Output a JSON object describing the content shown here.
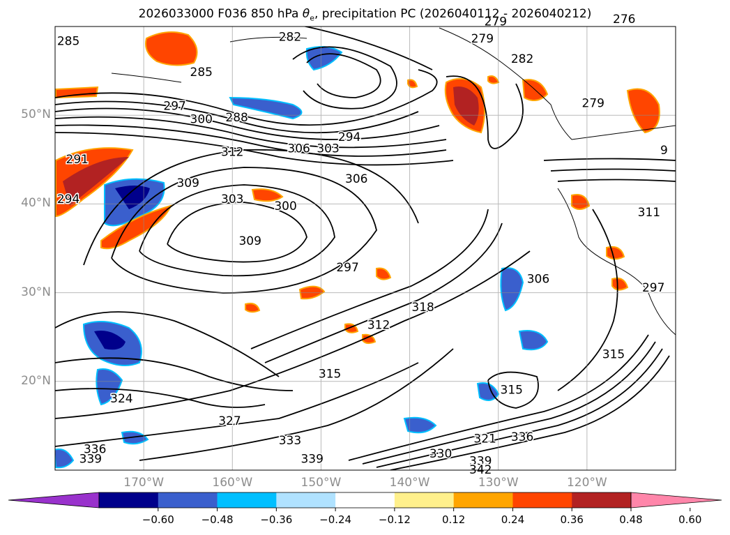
{
  "title": {
    "prefix": "2026033000 F036 850 hPa ",
    "theta": "θ",
    "theta_sub": "e",
    "suffix": ", precipitation PC (2026040112 - 2026040212)"
  },
  "axes": {
    "lat_labels": [
      "50°N",
      "40°N",
      "30°N",
      "20°N"
    ],
    "lon_labels": [
      "170°W",
      "160°W",
      "150°W",
      "140°W",
      "130°W",
      "120°W"
    ]
  },
  "contour_labels": [
    {
      "text": "285",
      "lon": -178.5,
      "lat": 58.3
    },
    {
      "text": "285",
      "lon": -163.5,
      "lat": 54.8
    },
    {
      "text": "282",
      "lon": -153.5,
      "lat": 58.8
    },
    {
      "text": "279",
      "lon": -130.3,
      "lat": 60.5
    },
    {
      "text": "279",
      "lon": -131.8,
      "lat": 58.6
    },
    {
      "text": "276",
      "lon": -115.8,
      "lat": 60.8
    },
    {
      "text": "282",
      "lon": -127.3,
      "lat": 56.3
    },
    {
      "text": "279",
      "lon": -119.3,
      "lat": 51.3
    },
    {
      "text": "297",
      "lon": -166.5,
      "lat": 51.0
    },
    {
      "text": "300",
      "lon": -163.5,
      "lat": 49.5
    },
    {
      "text": "288",
      "lon": -159.5,
      "lat": 49.7
    },
    {
      "text": "294",
      "lon": -146.8,
      "lat": 47.5
    },
    {
      "text": "306",
      "lon": -152.5,
      "lat": 46.2
    },
    {
      "text": "303",
      "lon": -149.2,
      "lat": 46.2
    },
    {
      "text": "312",
      "lon": -160.0,
      "lat": 45.8
    },
    {
      "text": "306",
      "lon": -146.0,
      "lat": 42.8
    },
    {
      "text": "291",
      "lon": -177.5,
      "lat": 45.0
    },
    {
      "text": "309",
      "lon": -165.0,
      "lat": 42.3
    },
    {
      "text": "303",
      "lon": -160.0,
      "lat": 40.5
    },
    {
      "text": "300",
      "lon": -154.0,
      "lat": 39.7
    },
    {
      "text": "294",
      "lon": -178.5,
      "lat": 40.5
    },
    {
      "text": "309",
      "lon": -158.0,
      "lat": 35.8
    },
    {
      "text": "297",
      "lon": -147.0,
      "lat": 32.8
    },
    {
      "text": "318",
      "lon": -138.5,
      "lat": 28.3
    },
    {
      "text": "306",
      "lon": -125.5,
      "lat": 31.5
    },
    {
      "text": "312",
      "lon": -143.5,
      "lat": 26.3
    },
    {
      "text": "315",
      "lon": -149.0,
      "lat": 20.8
    },
    {
      "text": "315",
      "lon": -117.0,
      "lat": 23.0
    },
    {
      "text": "315",
      "lon": -128.5,
      "lat": 19.0
    },
    {
      "text": "324",
      "lon": -172.5,
      "lat": 18.0
    },
    {
      "text": "327",
      "lon": -160.3,
      "lat": 15.5
    },
    {
      "text": "333",
      "lon": -153.5,
      "lat": 13.3
    },
    {
      "text": "321",
      "lon": -131.5,
      "lat": 13.5
    },
    {
      "text": "336",
      "lon": -127.3,
      "lat": 13.7
    },
    {
      "text": "336",
      "lon": -175.5,
      "lat": 12.3
    },
    {
      "text": "339",
      "lon": -176.0,
      "lat": 11.2
    },
    {
      "text": "339",
      "lon": -151.0,
      "lat": 11.2
    },
    {
      "text": "330",
      "lon": -136.5,
      "lat": 11.8
    },
    {
      "text": "339",
      "lon": -132.0,
      "lat": 11.0
    },
    {
      "text": "342",
      "lon": -132.0,
      "lat": 10.0
    },
    {
      "text": "311",
      "lon": -113.0,
      "lat": 39.0
    },
    {
      "text": "297",
      "lon": -112.5,
      "lat": 30.5
    },
    {
      "text": "9",
      "lon": -111.3,
      "lat": 46.0
    }
  ],
  "colorbar": {
    "ticks": [
      "−0.60",
      "−0.48",
      "−0.36",
      "−0.24",
      "−0.12",
      "0.12",
      "0.24",
      "0.36",
      "0.48",
      "0.60"
    ],
    "colors": [
      "#9932cc",
      "#00008b",
      "#3a5fcd",
      "#00bfff",
      "#b0e2ff",
      "#ffffff",
      "#fff08c",
      "#ffa500",
      "#ff4500",
      "#b22222",
      "#ff86aa"
    ]
  }
}
